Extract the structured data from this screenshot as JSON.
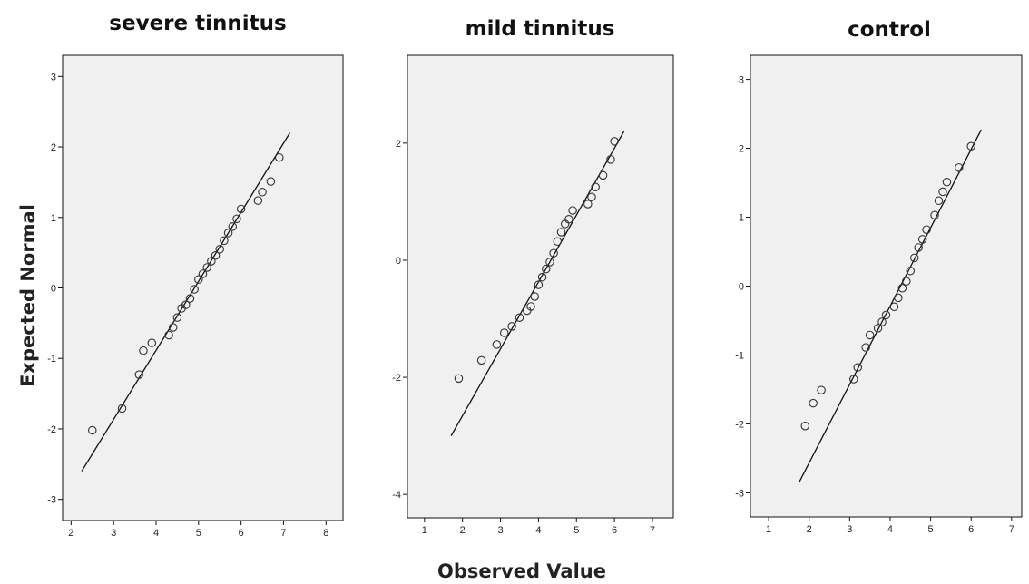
{
  "figure": {
    "y_axis_title": "Expected Normal",
    "x_axis_title": "Observed Value"
  },
  "chart_data": [
    {
      "type": "scatter",
      "title": "severe tinnitus",
      "xlim": [
        1.8,
        8.4
      ],
      "ylim": [
        -3.3,
        3.3
      ],
      "xticks": [
        2,
        3,
        4,
        5,
        6,
        7,
        8
      ],
      "yticks": [
        -3,
        -2,
        -1,
        0,
        1,
        2,
        3
      ],
      "reference_line": [
        [
          2.25,
          -2.6
        ],
        [
          7.15,
          2.2
        ]
      ],
      "points": [
        [
          2.5,
          -2.02
        ],
        [
          3.2,
          -1.71
        ],
        [
          3.6,
          -1.23
        ],
        [
          3.7,
          -0.89
        ],
        [
          3.9,
          -0.78
        ],
        [
          4.3,
          -0.67
        ],
        [
          4.4,
          -0.56
        ],
        [
          4.5,
          -0.42
        ],
        [
          4.6,
          -0.29
        ],
        [
          4.7,
          -0.24
        ],
        [
          4.8,
          -0.15
        ],
        [
          4.9,
          -0.02
        ],
        [
          5.0,
          0.12
        ],
        [
          5.1,
          0.2
        ],
        [
          5.2,
          0.29
        ],
        [
          5.3,
          0.38
        ],
        [
          5.4,
          0.46
        ],
        [
          5.5,
          0.55
        ],
        [
          5.6,
          0.67
        ],
        [
          5.7,
          0.78
        ],
        [
          5.8,
          0.87
        ],
        [
          5.9,
          0.98
        ],
        [
          6.0,
          1.12
        ],
        [
          6.4,
          1.24
        ],
        [
          6.5,
          1.36
        ],
        [
          6.7,
          1.51
        ],
        [
          6.9,
          1.85
        ]
      ]
    },
    {
      "type": "scatter",
      "title": "mild tinnitus",
      "xlim": [
        0.55,
        7.55
      ],
      "ylim": [
        -4.4,
        3.5
      ],
      "xticks": [
        1,
        2,
        3,
        4,
        5,
        6,
        7
      ],
      "yticks": [
        -4,
        -2,
        0,
        2
      ],
      "reference_line": [
        [
          1.7,
          -3.0
        ],
        [
          6.25,
          2.2
        ]
      ],
      "points": [
        [
          1.9,
          -2.02
        ],
        [
          2.5,
          -1.71
        ],
        [
          2.9,
          -1.44
        ],
        [
          3.1,
          -1.24
        ],
        [
          3.3,
          -1.13
        ],
        [
          3.5,
          -0.98
        ],
        [
          3.7,
          -0.86
        ],
        [
          3.8,
          -0.79
        ],
        [
          3.9,
          -0.62
        ],
        [
          4.0,
          -0.42
        ],
        [
          4.1,
          -0.29
        ],
        [
          4.2,
          -0.15
        ],
        [
          4.3,
          -0.03
        ],
        [
          4.4,
          0.12
        ],
        [
          4.5,
          0.32
        ],
        [
          4.6,
          0.48
        ],
        [
          4.7,
          0.62
        ],
        [
          4.8,
          0.7
        ],
        [
          4.9,
          0.85
        ],
        [
          5.3,
          0.96
        ],
        [
          5.4,
          1.08
        ],
        [
          5.5,
          1.25
        ],
        [
          5.7,
          1.45
        ],
        [
          5.9,
          1.72
        ],
        [
          6.0,
          2.03
        ]
      ]
    },
    {
      "type": "scatter",
      "title": "control",
      "xlim": [
        0.55,
        7.25
      ],
      "ylim": [
        -3.35,
        3.35
      ],
      "xticks": [
        1,
        2,
        3,
        4,
        5,
        6,
        7
      ],
      "yticks": [
        -3,
        -2,
        -1,
        0,
        1,
        2,
        3
      ],
      "reference_line": [
        [
          1.75,
          -2.85
        ],
        [
          6.25,
          2.27
        ]
      ],
      "points": [
        [
          1.9,
          -2.03
        ],
        [
          2.1,
          -1.7
        ],
        [
          2.3,
          -1.51
        ],
        [
          3.1,
          -1.35
        ],
        [
          3.2,
          -1.18
        ],
        [
          3.4,
          -0.89
        ],
        [
          3.5,
          -0.71
        ],
        [
          3.7,
          -0.61
        ],
        [
          3.8,
          -0.52
        ],
        [
          3.9,
          -0.42
        ],
        [
          4.1,
          -0.3
        ],
        [
          4.2,
          -0.17
        ],
        [
          4.3,
          -0.03
        ],
        [
          4.4,
          0.07
        ],
        [
          4.5,
          0.22
        ],
        [
          4.6,
          0.41
        ],
        [
          4.7,
          0.56
        ],
        [
          4.8,
          0.68
        ],
        [
          4.9,
          0.82
        ],
        [
          5.1,
          1.03
        ],
        [
          5.2,
          1.24
        ],
        [
          5.3,
          1.37
        ],
        [
          5.4,
          1.51
        ],
        [
          5.7,
          1.72
        ],
        [
          6.0,
          2.03
        ]
      ]
    }
  ]
}
